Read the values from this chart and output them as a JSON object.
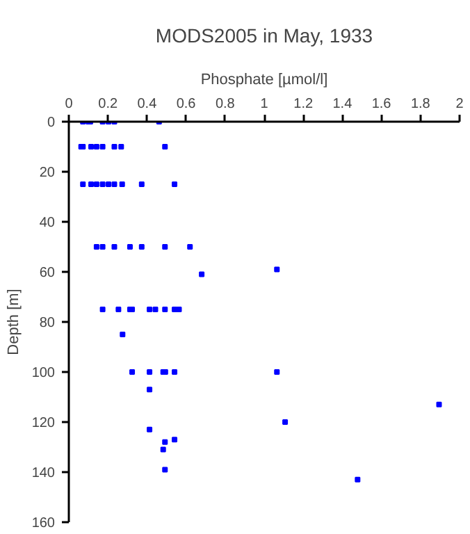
{
  "chart_data": {
    "type": "scatter",
    "title": "MODS2005 in May, 1933",
    "xlabel": "Phosphate [µmol/l]",
    "ylabel": "Depth [m]",
    "x": [
      0.072,
      0.1,
      0.11,
      0.173,
      0.203,
      0.233,
      0.462,
      0.063,
      0.072,
      0.114,
      0.142,
      0.173,
      0.233,
      0.268,
      0.492,
      0.072,
      0.114,
      0.142,
      0.173,
      0.203,
      0.233,
      0.273,
      0.373,
      0.541,
      0.142,
      0.173,
      0.233,
      0.313,
      0.373,
      0.492,
      0.62,
      0.68,
      1.065,
      0.173,
      0.254,
      0.313,
      0.324,
      0.413,
      0.443,
      0.492,
      0.541,
      0.564,
      0.275,
      0.324,
      0.413,
      0.483,
      0.494,
      0.541,
      1.065,
      0.413,
      1.895,
      1.107,
      1.478,
      0.413,
      0.492,
      0.541,
      0.483,
      0.492
    ],
    "series": [
      {
        "color": "#0000ff",
        "values": [
          0,
          0,
          0,
          0,
          0,
          0,
          0,
          10,
          10,
          10,
          10,
          10,
          10,
          10,
          10,
          25,
          25,
          25,
          25,
          25,
          25,
          25,
          25,
          25,
          50,
          50,
          50,
          50,
          50,
          50,
          50,
          61,
          59,
          75,
          75,
          75,
          75,
          75,
          75,
          75,
          75,
          75,
          85,
          100,
          100,
          100,
          100,
          100,
          100,
          107,
          113,
          120,
          143,
          123,
          128,
          127,
          131,
          139
        ]
      }
    ],
    "marker": "square",
    "xlim": [
      0,
      2
    ],
    "xticks": [
      0,
      0.2,
      0.4,
      0.6,
      0.8,
      1,
      1.2,
      1.4,
      1.6,
      1.8,
      2
    ],
    "ylim": [
      160,
      0
    ],
    "yticks": [
      0,
      20,
      40,
      60,
      80,
      100,
      120,
      140,
      160
    ],
    "grid": false
  }
}
